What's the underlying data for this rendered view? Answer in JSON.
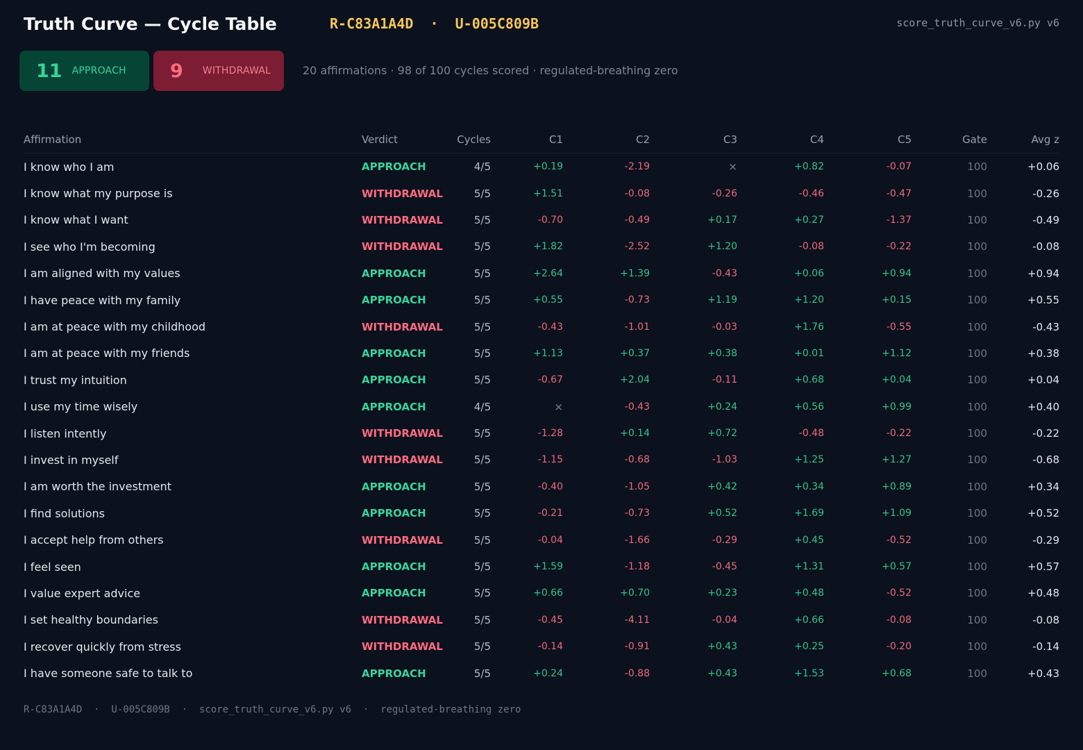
{
  "header": {
    "title": "Truth Curve — Cycle Table",
    "ids": "R-C83A1A4D  ·  U-005C809B",
    "script": "score_truth_curve_v6.py v6"
  },
  "badges": {
    "approach": {
      "count": "11",
      "label": "APPROACH",
      "color": "#37d39b"
    },
    "withdrawal": {
      "count": "9",
      "label": "WITHDRAWAL",
      "color": "#ff6b81"
    }
  },
  "summary": "20 affirmations  ·  98 of 100 cycles scored  ·  regulated-breathing zero",
  "table": {
    "columns": [
      "Affirmation",
      "Verdict",
      "Cycles",
      "C1",
      "C2",
      "C3",
      "C4",
      "C5",
      "Gate",
      "Avg z"
    ],
    "rows": [
      {
        "affirmation": "I know who I am",
        "verdict": "APPROACH",
        "cycles": "4/5",
        "c": [
          "+0.19",
          "-2.19",
          "×",
          "+0.82",
          "-0.07"
        ],
        "gate": "100",
        "avg": "+0.06"
      },
      {
        "affirmation": "I know what my purpose is",
        "verdict": "WITHDRAWAL",
        "cycles": "5/5",
        "c": [
          "+1.51",
          "-0.08",
          "-0.26",
          "-0.46",
          "-0.47"
        ],
        "gate": "100",
        "avg": "-0.26"
      },
      {
        "affirmation": "I know what I want",
        "verdict": "WITHDRAWAL",
        "cycles": "5/5",
        "c": [
          "-0.70",
          "-0.49",
          "+0.17",
          "+0.27",
          "-1.37"
        ],
        "gate": "100",
        "avg": "-0.49"
      },
      {
        "affirmation": "I see who I'm becoming",
        "verdict": "WITHDRAWAL",
        "cycles": "5/5",
        "c": [
          "+1.82",
          "-2.52",
          "+1.20",
          "-0.08",
          "-0.22"
        ],
        "gate": "100",
        "avg": "-0.08"
      },
      {
        "affirmation": "I am aligned with my values",
        "verdict": "APPROACH",
        "cycles": "5/5",
        "c": [
          "+2.64",
          "+1.39",
          "-0.43",
          "+0.06",
          "+0.94"
        ],
        "gate": "100",
        "avg": "+0.94"
      },
      {
        "affirmation": "I have peace with my family",
        "verdict": "APPROACH",
        "cycles": "5/5",
        "c": [
          "+0.55",
          "-0.73",
          "+1.19",
          "+1.20",
          "+0.15"
        ],
        "gate": "100",
        "avg": "+0.55"
      },
      {
        "affirmation": "I am at peace with my childhood",
        "verdict": "WITHDRAWAL",
        "cycles": "5/5",
        "c": [
          "-0.43",
          "-1.01",
          "-0.03",
          "+1.76",
          "-0.55"
        ],
        "gate": "100",
        "avg": "-0.43"
      },
      {
        "affirmation": "I am at peace with my friends",
        "verdict": "APPROACH",
        "cycles": "5/5",
        "c": [
          "+1.13",
          "+0.37",
          "+0.38",
          "+0.01",
          "+1.12"
        ],
        "gate": "100",
        "avg": "+0.38"
      },
      {
        "affirmation": "I trust my intuition",
        "verdict": "APPROACH",
        "cycles": "5/5",
        "c": [
          "-0.67",
          "+2.04",
          "-0.11",
          "+0.68",
          "+0.04"
        ],
        "gate": "100",
        "avg": "+0.04"
      },
      {
        "affirmation": "I use my time wisely",
        "verdict": "APPROACH",
        "cycles": "4/5",
        "c": [
          "×",
          "-0.43",
          "+0.24",
          "+0.56",
          "+0.99"
        ],
        "gate": "100",
        "avg": "+0.40"
      },
      {
        "affirmation": "I listen intently",
        "verdict": "WITHDRAWAL",
        "cycles": "5/5",
        "c": [
          "-1.28",
          "+0.14",
          "+0.72",
          "-0.48",
          "-0.22"
        ],
        "gate": "100",
        "avg": "-0.22"
      },
      {
        "affirmation": "I invest in myself",
        "verdict": "WITHDRAWAL",
        "cycles": "5/5",
        "c": [
          "-1.15",
          "-0.68",
          "-1.03",
          "+1.25",
          "+1.27"
        ],
        "gate": "100",
        "avg": "-0.68"
      },
      {
        "affirmation": "I am worth the investment",
        "verdict": "APPROACH",
        "cycles": "5/5",
        "c": [
          "-0.40",
          "-1.05",
          "+0.42",
          "+0.34",
          "+0.89"
        ],
        "gate": "100",
        "avg": "+0.34"
      },
      {
        "affirmation": "I find solutions",
        "verdict": "APPROACH",
        "cycles": "5/5",
        "c": [
          "-0.21",
          "-0.73",
          "+0.52",
          "+1.69",
          "+1.09"
        ],
        "gate": "100",
        "avg": "+0.52"
      },
      {
        "affirmation": "I accept help from others",
        "verdict": "WITHDRAWAL",
        "cycles": "5/5",
        "c": [
          "-0.04",
          "-1.66",
          "-0.29",
          "+0.45",
          "-0.52"
        ],
        "gate": "100",
        "avg": "-0.29"
      },
      {
        "affirmation": "I feel seen",
        "verdict": "APPROACH",
        "cycles": "5/5",
        "c": [
          "+1.59",
          "-1.18",
          "-0.45",
          "+1.31",
          "+0.57"
        ],
        "gate": "100",
        "avg": "+0.57"
      },
      {
        "affirmation": "I value expert advice",
        "verdict": "APPROACH",
        "cycles": "5/5",
        "c": [
          "+0.66",
          "+0.70",
          "+0.23",
          "+0.48",
          "-0.52"
        ],
        "gate": "100",
        "avg": "+0.48"
      },
      {
        "affirmation": "I set healthy boundaries",
        "verdict": "WITHDRAWAL",
        "cycles": "5/5",
        "c": [
          "-0.45",
          "-4.11",
          "-0.04",
          "+0.66",
          "-0.08"
        ],
        "gate": "100",
        "avg": "-0.08"
      },
      {
        "affirmation": "I recover quickly from stress",
        "verdict": "WITHDRAWAL",
        "cycles": "5/5",
        "c": [
          "-0.14",
          "-0.91",
          "+0.43",
          "+0.25",
          "-0.20"
        ],
        "gate": "100",
        "avg": "-0.14"
      },
      {
        "affirmation": "I have someone safe to talk to",
        "verdict": "APPROACH",
        "cycles": "5/5",
        "c": [
          "+0.24",
          "-0.88",
          "+0.43",
          "+1.53",
          "+0.68"
        ],
        "gate": "100",
        "avg": "+0.43"
      }
    ]
  },
  "footer": "R-C83A1A4D  ·  U-005C809B  ·  score_truth_curve_v6.py v6  ·  regulated-breathing zero"
}
